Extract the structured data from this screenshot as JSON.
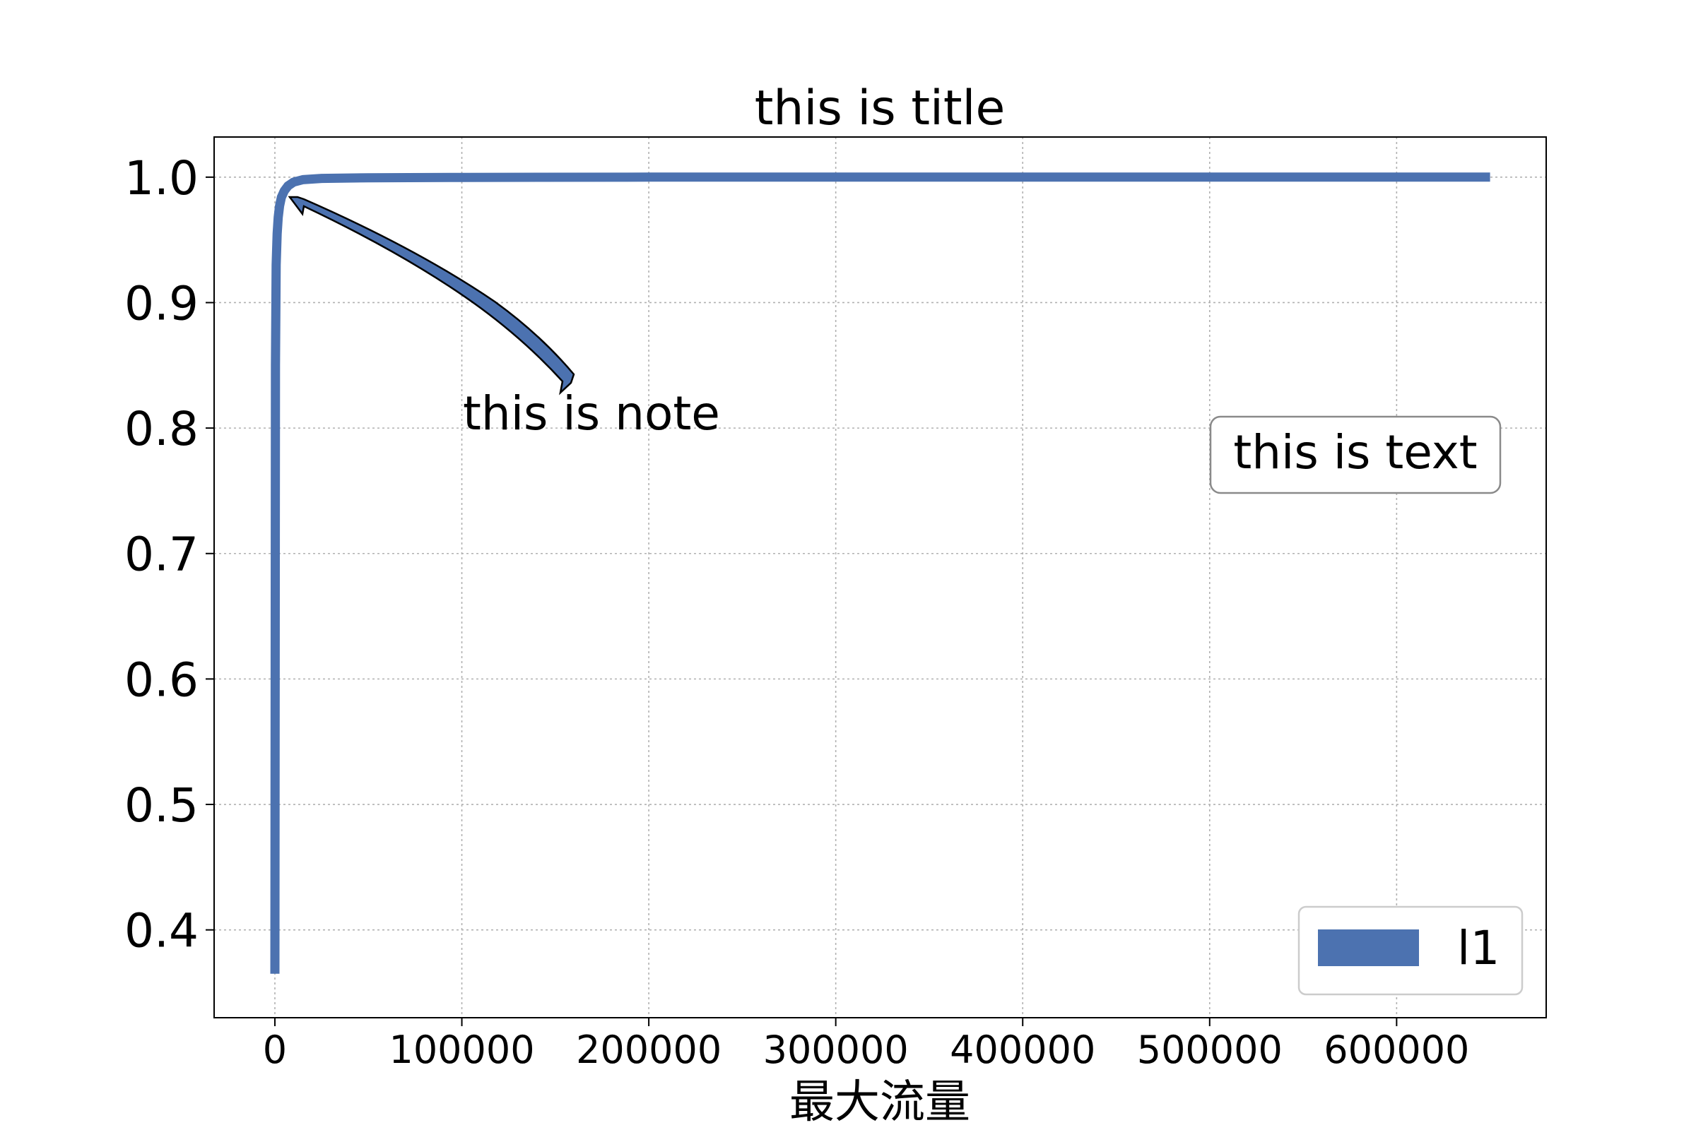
{
  "chart_data": {
    "type": "line",
    "title": "this is title",
    "xlabel": "最大流量",
    "ylabel": "",
    "xlim": [
      -32500,
      680000
    ],
    "ylim": [
      0.33,
      1.032
    ],
    "x_ticks": [
      0,
      100000,
      200000,
      300000,
      400000,
      500000,
      600000
    ],
    "x_tick_labels": [
      "0",
      "100000",
      "200000",
      "300000",
      "400000",
      "500000",
      "600000"
    ],
    "y_ticks": [
      0.4,
      0.5,
      0.6,
      0.7,
      0.8,
      0.9,
      1.0
    ],
    "y_tick_labels": [
      "0.4",
      "0.5",
      "0.6",
      "0.7",
      "0.8",
      "0.9",
      "1.0"
    ],
    "grid": true,
    "legend": {
      "placement": "lower-right",
      "entries": [
        "l1"
      ]
    },
    "series": [
      {
        "name": "l1",
        "color": "#4c72b0",
        "x": [
          0,
          300,
          700,
          1200,
          1800,
          2500,
          3500,
          5000,
          7000,
          10000,
          15000,
          25000,
          50000,
          100000,
          200000,
          400000,
          650000
        ],
        "y": [
          0.365,
          0.85,
          0.93,
          0.955,
          0.968,
          0.977,
          0.984,
          0.989,
          0.993,
          0.996,
          0.998,
          0.999,
          0.9995,
          0.9998,
          1.0,
          1.0,
          1.0
        ]
      }
    ],
    "annotations": [
      {
        "text": "this is note",
        "type": "arrow",
        "xy": [
          6500,
          0.984
        ],
        "xytext": [
          100000,
          0.8
        ]
      },
      {
        "text": "this is text",
        "type": "boxed-text",
        "xy": [
          500000,
          0.77
        ]
      }
    ]
  }
}
